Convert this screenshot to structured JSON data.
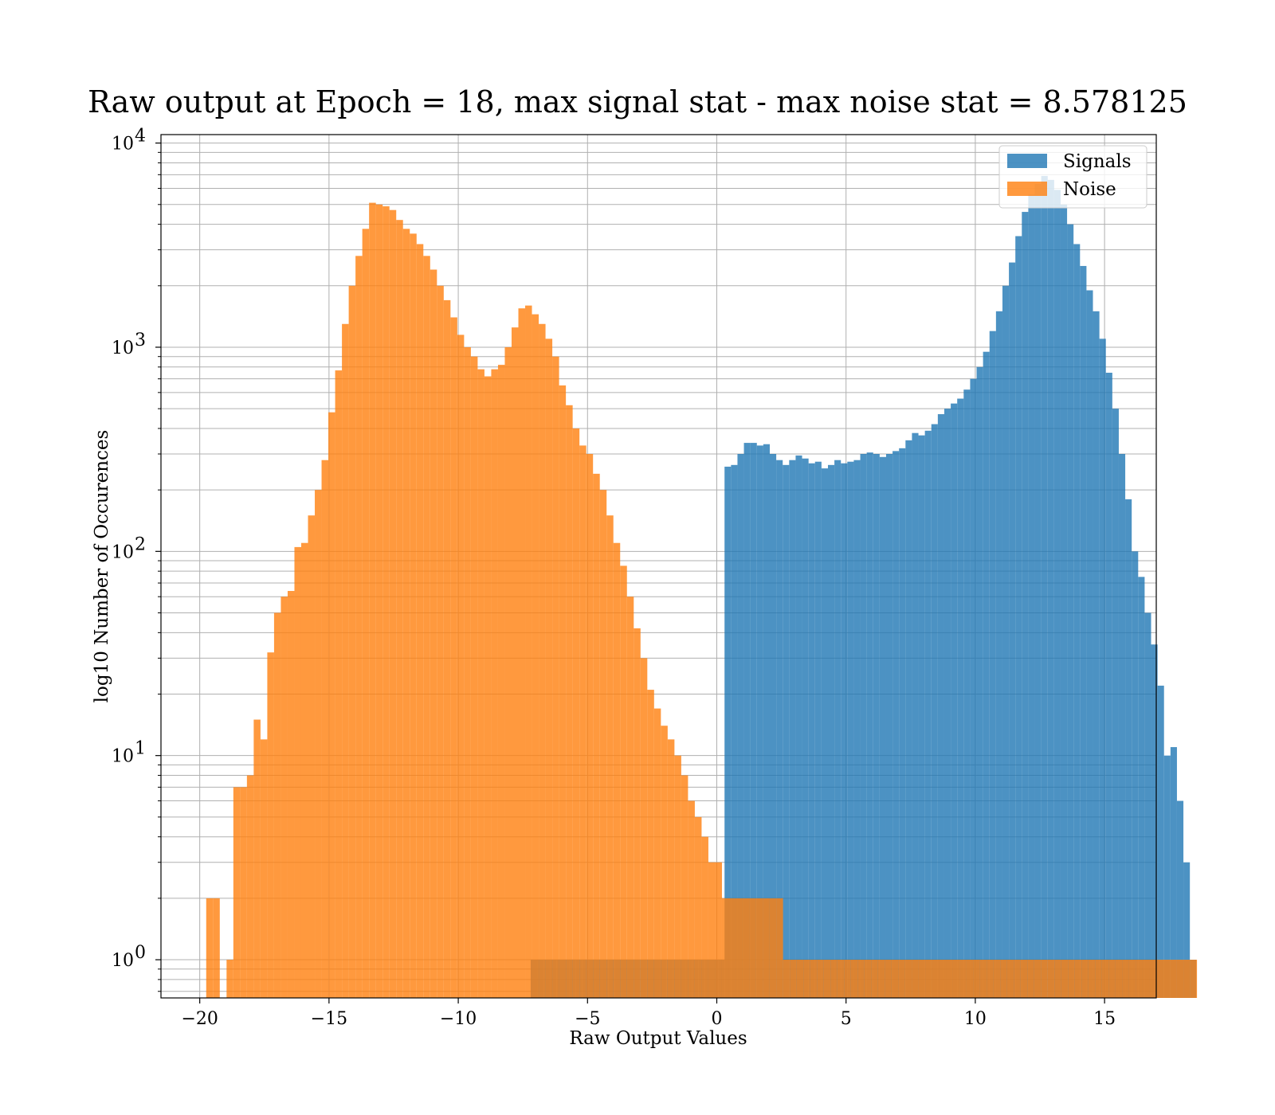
{
  "chart_data": {
    "type": "bar",
    "title": "Raw output at Epoch = 18, max signal stat - max noise stat = 8.578125",
    "xlabel": "Raw Output Values",
    "ylabel": "log10 Number of Occurences",
    "xlim": [
      -21.5,
      17.0
    ],
    "ylim": [
      0.65,
      11000
    ],
    "yscale": "log",
    "grid": true,
    "legend_position": "top-right",
    "x_ticks": [
      -20,
      -15,
      -10,
      -5,
      0,
      5,
      10,
      15
    ],
    "x_tick_labels": [
      "−20",
      "−15",
      "−10",
      "−5",
      "0",
      "5",
      "10",
      "15"
    ],
    "y_ticks": [
      1,
      10,
      100,
      1000,
      10000
    ],
    "y_tick_labels": [
      {
        "base": "10",
        "exp": "0"
      },
      {
        "base": "10",
        "exp": "1"
      },
      {
        "base": "10",
        "exp": "2"
      },
      {
        "base": "10",
        "exp": "3"
      },
      {
        "base": "10",
        "exp": "4"
      }
    ],
    "series": [
      {
        "name": "Signals",
        "color": "#1f77b4",
        "bin_start": -7.2,
        "bin_width": 0.25,
        "counts": [
          1,
          1,
          1,
          1,
          1,
          1,
          1,
          1,
          1,
          1,
          1,
          1,
          1,
          1,
          1,
          1,
          1,
          1,
          1,
          1,
          1,
          1,
          1,
          1,
          1,
          1,
          1,
          1,
          1,
          1,
          260,
          265,
          300,
          340,
          340,
          330,
          335,
          300,
          280,
          265,
          280,
          295,
          285,
          270,
          275,
          255,
          265,
          280,
          270,
          275,
          280,
          300,
          305,
          300,
          290,
          300,
          310,
          320,
          350,
          380,
          370,
          390,
          420,
          470,
          500,
          530,
          560,
          620,
          700,
          800,
          950,
          1200,
          1500,
          2000,
          2600,
          3500,
          4600,
          5600,
          6300,
          6900,
          6600,
          5900,
          5000,
          4000,
          3200,
          2500,
          1900,
          1500,
          1100,
          750,
          500,
          300,
          180,
          100,
          75,
          50,
          35,
          22,
          10,
          11,
          6,
          3,
          1
        ]
      },
      {
        "name": "Noise",
        "color": "#ff7f0e",
        "bin_start": -19.75,
        "bin_width": 0.2625,
        "counts": [
          2,
          2,
          0,
          1,
          7,
          7,
          8,
          15,
          12,
          32,
          50,
          60,
          64,
          105,
          110,
          150,
          200,
          280,
          480,
          770,
          1300,
          2000,
          2800,
          3800,
          5100,
          5000,
          4900,
          4700,
          4200,
          3800,
          3600,
          3200,
          2800,
          2400,
          2000,
          1700,
          1400,
          1150,
          1000,
          900,
          780,
          720,
          780,
          820,
          1000,
          1250,
          1550,
          1600,
          1450,
          1300,
          1100,
          900,
          650,
          520,
          400,
          330,
          300,
          240,
          200,
          150,
          110,
          85,
          60,
          42,
          30,
          21,
          17,
          14,
          12,
          10,
          8,
          6,
          5,
          4,
          3,
          3,
          2,
          2,
          2,
          2,
          2,
          2,
          2,
          2,
          2,
          1,
          1,
          1,
          1,
          1,
          1,
          1,
          1,
          1,
          1,
          1,
          1,
          1,
          1,
          1,
          1,
          1,
          1,
          1,
          1,
          1,
          1,
          1,
          1,
          1,
          1,
          1,
          1,
          1,
          1,
          1,
          1,
          1,
          1,
          1,
          1,
          1,
          1,
          1,
          1,
          1,
          1,
          1,
          1,
          1,
          1,
          1,
          1,
          1,
          1,
          1,
          1,
          1,
          1,
          1,
          1,
          1,
          1,
          1,
          1,
          1
        ]
      }
    ]
  }
}
